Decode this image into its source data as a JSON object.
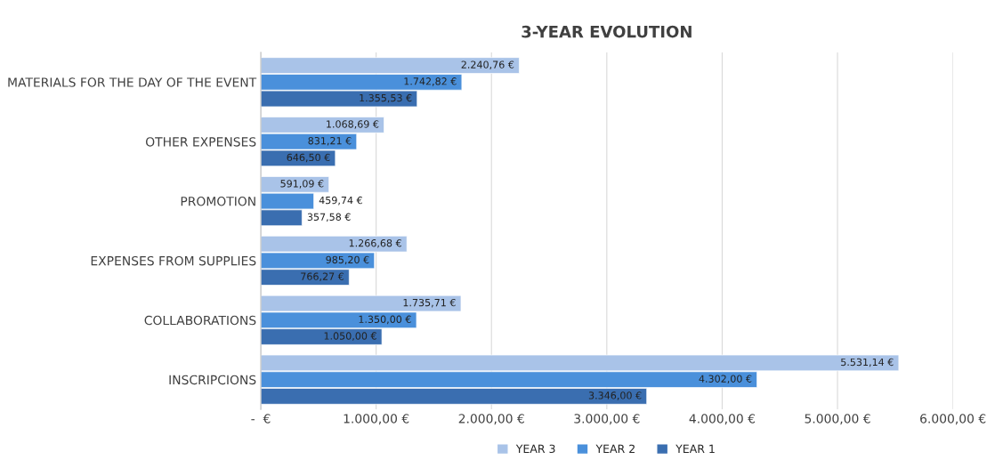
{
  "chart_data": {
    "type": "bar",
    "orientation": "horizontal",
    "title": "3-YEAR EVOLUTION",
    "categories": [
      "MATERIALS FOR THE DAY OF THE EVENT",
      "OTHER EXPENSES",
      "PROMOTION",
      "EXPENSES FROM SUPPLIES",
      "COLLABORATIONS",
      "INSCRIPCIONS"
    ],
    "series": [
      {
        "name": "YEAR 3",
        "color": "#a9c3e8",
        "values": [
          2240.76,
          1068.69,
          591.09,
          1266.68,
          1735.71,
          5531.14
        ],
        "value_labels": [
          "2.240,76 €",
          "1.068,69 €",
          "591,09 €",
          "1.266,68 €",
          "1.735,71 €",
          "5.531,14 €"
        ]
      },
      {
        "name": "YEAR 2",
        "color": "#4a90db",
        "values": [
          1742.82,
          831.21,
          459.74,
          985.2,
          1350.0,
          4302.0
        ],
        "value_labels": [
          "1.742,82 €",
          "831,21 €",
          "459,74 €",
          "985,20 €",
          "1.350,00 €",
          "4.302,00 €"
        ]
      },
      {
        "name": "YEAR 1",
        "color": "#3a6eb0",
        "values": [
          1355.53,
          646.5,
          357.58,
          766.27,
          1050.0,
          3346.0
        ],
        "value_labels": [
          "1.355,53 €",
          "646,50 €",
          "357,58 €",
          "766,27 €",
          "1.050,00 €",
          "3.346,00 €"
        ]
      }
    ],
    "xlim": [
      0,
      6000
    ],
    "xticks": [
      {
        "value": 0,
        "label": "-  €"
      },
      {
        "value": 1000,
        "label": "1.000,00 €"
      },
      {
        "value": 2000,
        "label": "2.000,00 €"
      },
      {
        "value": 3000,
        "label": "3.000,00 €"
      },
      {
        "value": 4000,
        "label": "4.000,00 €"
      },
      {
        "value": 5000,
        "label": "5.000,00 €"
      },
      {
        "value": 6000,
        "label": "6.000,00 €"
      }
    ],
    "grid": "x",
    "legend": "bottom"
  }
}
